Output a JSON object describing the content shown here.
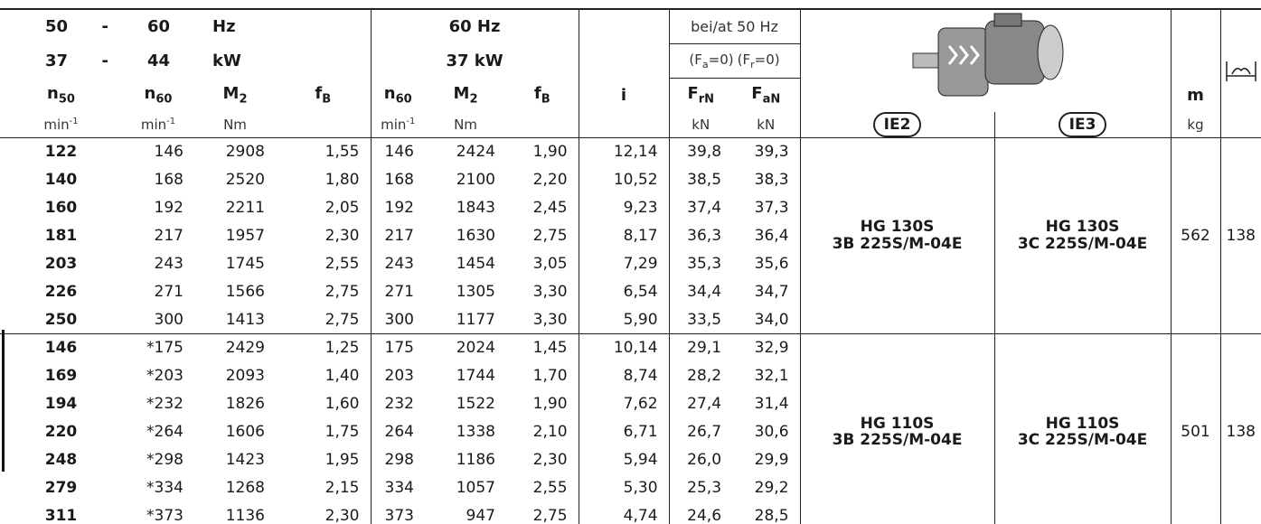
{
  "header": {
    "r1": [
      "50",
      "-",
      "60",
      "Hz"
    ],
    "r1_mid": "60 Hz",
    "r1_force": "bei/at 50 Hz",
    "r2": [
      "37",
      "-",
      "44",
      "kW"
    ],
    "r2_mid": "37 kW",
    "r2_force": [
      {
        "t": "(F",
        "s": "a",
        "e": "=0)"
      },
      {
        "t": "(F",
        "s": "r",
        "e": "=0)"
      }
    ],
    "cols": [
      {
        "sym": "n",
        "sub": "50",
        "unit": "min",
        "sup": "-1"
      },
      {
        "sym": "n",
        "sub": "60",
        "unit": "min",
        "sup": "-1"
      },
      {
        "sym": "M",
        "sub": "2",
        "unit": "Nm"
      },
      {
        "sym": "f",
        "sub": "B"
      },
      {
        "sym": "n",
        "sub": "60",
        "unit": "min",
        "sup": "-1"
      },
      {
        "sym": "M",
        "sub": "2",
        "unit": "Nm"
      },
      {
        "sym": "f",
        "sub": "B"
      },
      {
        "sym": "i"
      },
      {
        "sym": "F",
        "sub": "rN",
        "unit": "kN"
      },
      {
        "sym": "F",
        "sub": "aN",
        "unit": "kN"
      }
    ],
    "ie2": "IE2",
    "ie3": "IE3",
    "m": "m",
    "m_unit": "kg"
  },
  "groups": [
    {
      "rows": [
        [
          "122",
          "146",
          "2908",
          "1,55",
          "146",
          "2424",
          "1,90",
          "12,14",
          "39,8",
          "39,3"
        ],
        [
          "140",
          "168",
          "2520",
          "1,80",
          "168",
          "2100",
          "2,20",
          "10,52",
          "38,5",
          "38,3"
        ],
        [
          "160",
          "192",
          "2211",
          "2,05",
          "192",
          "1843",
          "2,45",
          "9,23",
          "37,4",
          "37,3"
        ],
        [
          "181",
          "217",
          "1957",
          "2,30",
          "217",
          "1630",
          "2,75",
          "8,17",
          "36,3",
          "36,4"
        ],
        [
          "203",
          "243",
          "1745",
          "2,55",
          "243",
          "1454",
          "3,05",
          "7,29",
          "35,3",
          "35,6"
        ],
        [
          "226",
          "271",
          "1566",
          "2,75",
          "271",
          "1305",
          "3,30",
          "6,54",
          "34,4",
          "34,7"
        ],
        [
          "250",
          "300",
          "1413",
          "2,75",
          "300",
          "1177",
          "3,30",
          "5,90",
          "33,5",
          "34,0"
        ]
      ],
      "ie2": [
        "HG 130S",
        "3B 225S/M-04E"
      ],
      "ie3": [
        "HG 130S",
        "3C 225S/M-04E"
      ],
      "m": "562",
      "page": "138"
    },
    {
      "rows": [
        [
          "146",
          "*175",
          "2429",
          "1,25",
          "175",
          "2024",
          "1,45",
          "10,14",
          "29,1",
          "32,9"
        ],
        [
          "169",
          "*203",
          "2093",
          "1,40",
          "203",
          "1744",
          "1,70",
          "8,74",
          "28,2",
          "32,1"
        ],
        [
          "194",
          "*232",
          "1826",
          "1,60",
          "232",
          "1522",
          "1,90",
          "7,62",
          "27,4",
          "31,4"
        ],
        [
          "220",
          "*264",
          "1606",
          "1,75",
          "264",
          "1338",
          "2,10",
          "6,71",
          "26,7",
          "30,6"
        ],
        [
          "248",
          "*298",
          "1423",
          "1,95",
          "298",
          "1186",
          "2,30",
          "5,94",
          "26,0",
          "29,9"
        ],
        [
          "279",
          "*334",
          "1268",
          "2,15",
          "334",
          "1057",
          "2,55",
          "5,30",
          "25,3",
          "29,2"
        ],
        [
          "311",
          "*373",
          "1136",
          "2,30",
          "373",
          "947",
          "2,75",
          "4,74",
          "24,6",
          "28,5"
        ]
      ],
      "ie2": [
        "HG 110S",
        "3B 225S/M-04E"
      ],
      "ie3": [
        "HG 110S",
        "3C 225S/M-04E"
      ],
      "m": "501",
      "page": "138"
    }
  ]
}
